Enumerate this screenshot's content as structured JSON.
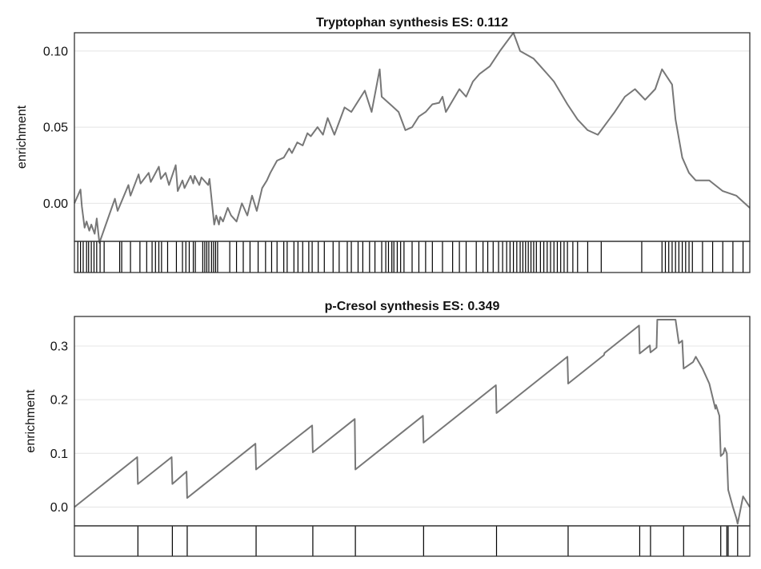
{
  "chart_data": [
    {
      "type": "line",
      "title": "Tryptophan synthesis ES: 0.112",
      "ylabel": "enrichment",
      "xlabel": "",
      "ylim": [
        -0.025,
        0.112
      ],
      "yticks": [
        "0.00",
        "0.05",
        "0.10"
      ],
      "ytick_values": [
        0.0,
        0.05,
        0.1
      ],
      "grid": true,
      "line_color": "#777777",
      "x": [
        0,
        0.009,
        0.011,
        0.015,
        0.018,
        0.022,
        0.025,
        0.03,
        0.033,
        0.037,
        0.06,
        0.064,
        0.08,
        0.083,
        0.095,
        0.098,
        0.11,
        0.113,
        0.125,
        0.128,
        0.135,
        0.14,
        0.15,
        0.153,
        0.16,
        0.163,
        0.172,
        0.176,
        0.178,
        0.185,
        0.188,
        0.198,
        0.2,
        0.207,
        0.21,
        0.214,
        0.216,
        0.22,
        0.227,
        0.232,
        0.24,
        0.248,
        0.256,
        0.263,
        0.27,
        0.278,
        0.285,
        0.29,
        0.3,
        0.31,
        0.318,
        0.322,
        0.33,
        0.338,
        0.345,
        0.35,
        0.36,
        0.368,
        0.375,
        0.385,
        0.4,
        0.41,
        0.43,
        0.44,
        0.452,
        0.455,
        0.47,
        0.48,
        0.49,
        0.5,
        0.51,
        0.52,
        0.53,
        0.54,
        0.545,
        0.55,
        0.57,
        0.58,
        0.59,
        0.6,
        0.615,
        0.63,
        0.65,
        0.66,
        0.68,
        0.69,
        0.7,
        0.71,
        0.73,
        0.745,
        0.76,
        0.775,
        0.8,
        0.815,
        0.83,
        0.845,
        0.86,
        0.87,
        0.885,
        0.89,
        0.9,
        0.91,
        0.92,
        0.94,
        0.96,
        0.98,
        1.0
      ],
      "y": [
        0.0,
        0.009,
        -0.002,
        -0.016,
        -0.012,
        -0.018,
        -0.014,
        -0.02,
        -0.01,
        -0.026,
        0.003,
        -0.005,
        0.012,
        0.005,
        0.019,
        0.013,
        0.02,
        0.014,
        0.024,
        0.016,
        0.02,
        0.012,
        0.025,
        0.008,
        0.015,
        0.01,
        0.018,
        0.013,
        0.018,
        0.012,
        0.017,
        0.012,
        0.016,
        -0.014,
        -0.008,
        -0.014,
        -0.009,
        -0.012,
        -0.003,
        -0.008,
        -0.012,
        0.0,
        -0.008,
        0.005,
        -0.005,
        0.01,
        0.015,
        0.02,
        0.028,
        0.03,
        0.036,
        0.033,
        0.04,
        0.038,
        0.046,
        0.044,
        0.05,
        0.045,
        0.056,
        0.045,
        0.063,
        0.06,
        0.074,
        0.06,
        0.088,
        0.07,
        0.064,
        0.06,
        0.048,
        0.05,
        0.057,
        0.06,
        0.065,
        0.066,
        0.07,
        0.06,
        0.075,
        0.07,
        0.08,
        0.085,
        0.09,
        0.1,
        0.112,
        0.1,
        0.095,
        0.09,
        0.085,
        0.08,
        0.065,
        0.055,
        0.048,
        0.045,
        0.06,
        0.07,
        0.075,
        0.068,
        0.075,
        0.088,
        0.078,
        0.055,
        0.03,
        0.02,
        0.015,
        0.015,
        0.008,
        0.005,
        -0.003
      ],
      "hits": [
        0.005,
        0.009,
        0.013,
        0.018,
        0.021,
        0.025,
        0.029,
        0.033,
        0.038,
        0.044,
        0.067,
        0.07,
        0.083,
        0.097,
        0.107,
        0.115,
        0.12,
        0.125,
        0.129,
        0.138,
        0.151,
        0.16,
        0.165,
        0.17,
        0.176,
        0.179,
        0.19,
        0.193,
        0.196,
        0.199,
        0.203,
        0.206,
        0.209,
        0.212,
        0.23,
        0.24,
        0.25,
        0.26,
        0.272,
        0.283,
        0.292,
        0.3,
        0.31,
        0.315,
        0.325,
        0.331,
        0.338,
        0.347,
        0.352,
        0.361,
        0.37,
        0.383,
        0.392,
        0.404,
        0.41,
        0.42,
        0.427,
        0.437,
        0.445,
        0.455,
        0.461,
        0.465,
        0.47,
        0.473,
        0.478,
        0.483,
        0.488,
        0.5,
        0.51,
        0.52,
        0.53,
        0.545,
        0.56,
        0.57,
        0.58,
        0.595,
        0.605,
        0.612,
        0.62,
        0.628,
        0.634,
        0.64,
        0.645,
        0.65,
        0.655,
        0.66,
        0.664,
        0.668,
        0.672,
        0.676,
        0.68,
        0.684,
        0.69,
        0.695,
        0.7,
        0.705,
        0.71,
        0.715,
        0.72,
        0.725,
        0.73,
        0.738,
        0.745,
        0.76,
        0.78,
        0.84,
        0.87,
        0.875,
        0.88,
        0.885,
        0.89,
        0.895,
        0.9,
        0.905,
        0.91,
        0.915,
        0.93,
        0.945,
        0.96,
        0.975,
        0.99
      ]
    },
    {
      "type": "line",
      "title": "p-Cresol synthesis ES: 0.349",
      "ylabel": "enrichment",
      "xlabel": "",
      "ylim": [
        -0.035,
        0.355
      ],
      "yticks": [
        "0.0",
        "0.1",
        "0.2",
        "0.3"
      ],
      "ytick_values": [
        0.0,
        0.1,
        0.2,
        0.3
      ],
      "grid": true,
      "line_color": "#777777",
      "x": [
        0,
        0.093,
        0.094,
        0.144,
        0.145,
        0.166,
        0.167,
        0.268,
        0.269,
        0.352,
        0.353,
        0.415,
        0.416,
        0.516,
        0.517,
        0.624,
        0.625,
        0.73,
        0.731,
        0.784,
        0.785,
        0.836,
        0.837,
        0.852,
        0.853,
        0.862,
        0.863,
        0.89,
        0.895,
        0.9,
        0.902,
        0.916,
        0.92,
        0.93,
        0.94,
        0.949,
        0.95,
        0.955,
        0.957,
        0.961,
        0.963,
        0.966,
        0.968,
        0.975,
        0.98,
        0.982,
        0.99,
        1.0
      ],
      "y": [
        0.0,
        0.093,
        0.043,
        0.093,
        0.043,
        0.066,
        0.017,
        0.118,
        0.07,
        0.152,
        0.102,
        0.164,
        0.07,
        0.17,
        0.12,
        0.227,
        0.175,
        0.28,
        0.23,
        0.283,
        0.287,
        0.338,
        0.286,
        0.301,
        0.288,
        0.297,
        0.349,
        0.349,
        0.305,
        0.31,
        0.258,
        0.27,
        0.28,
        0.258,
        0.23,
        0.183,
        0.19,
        0.17,
        0.095,
        0.1,
        0.11,
        0.1,
        0.032,
        0.0,
        -0.02,
        -0.031,
        0.02,
        0.0
      ]
    }
  ]
}
